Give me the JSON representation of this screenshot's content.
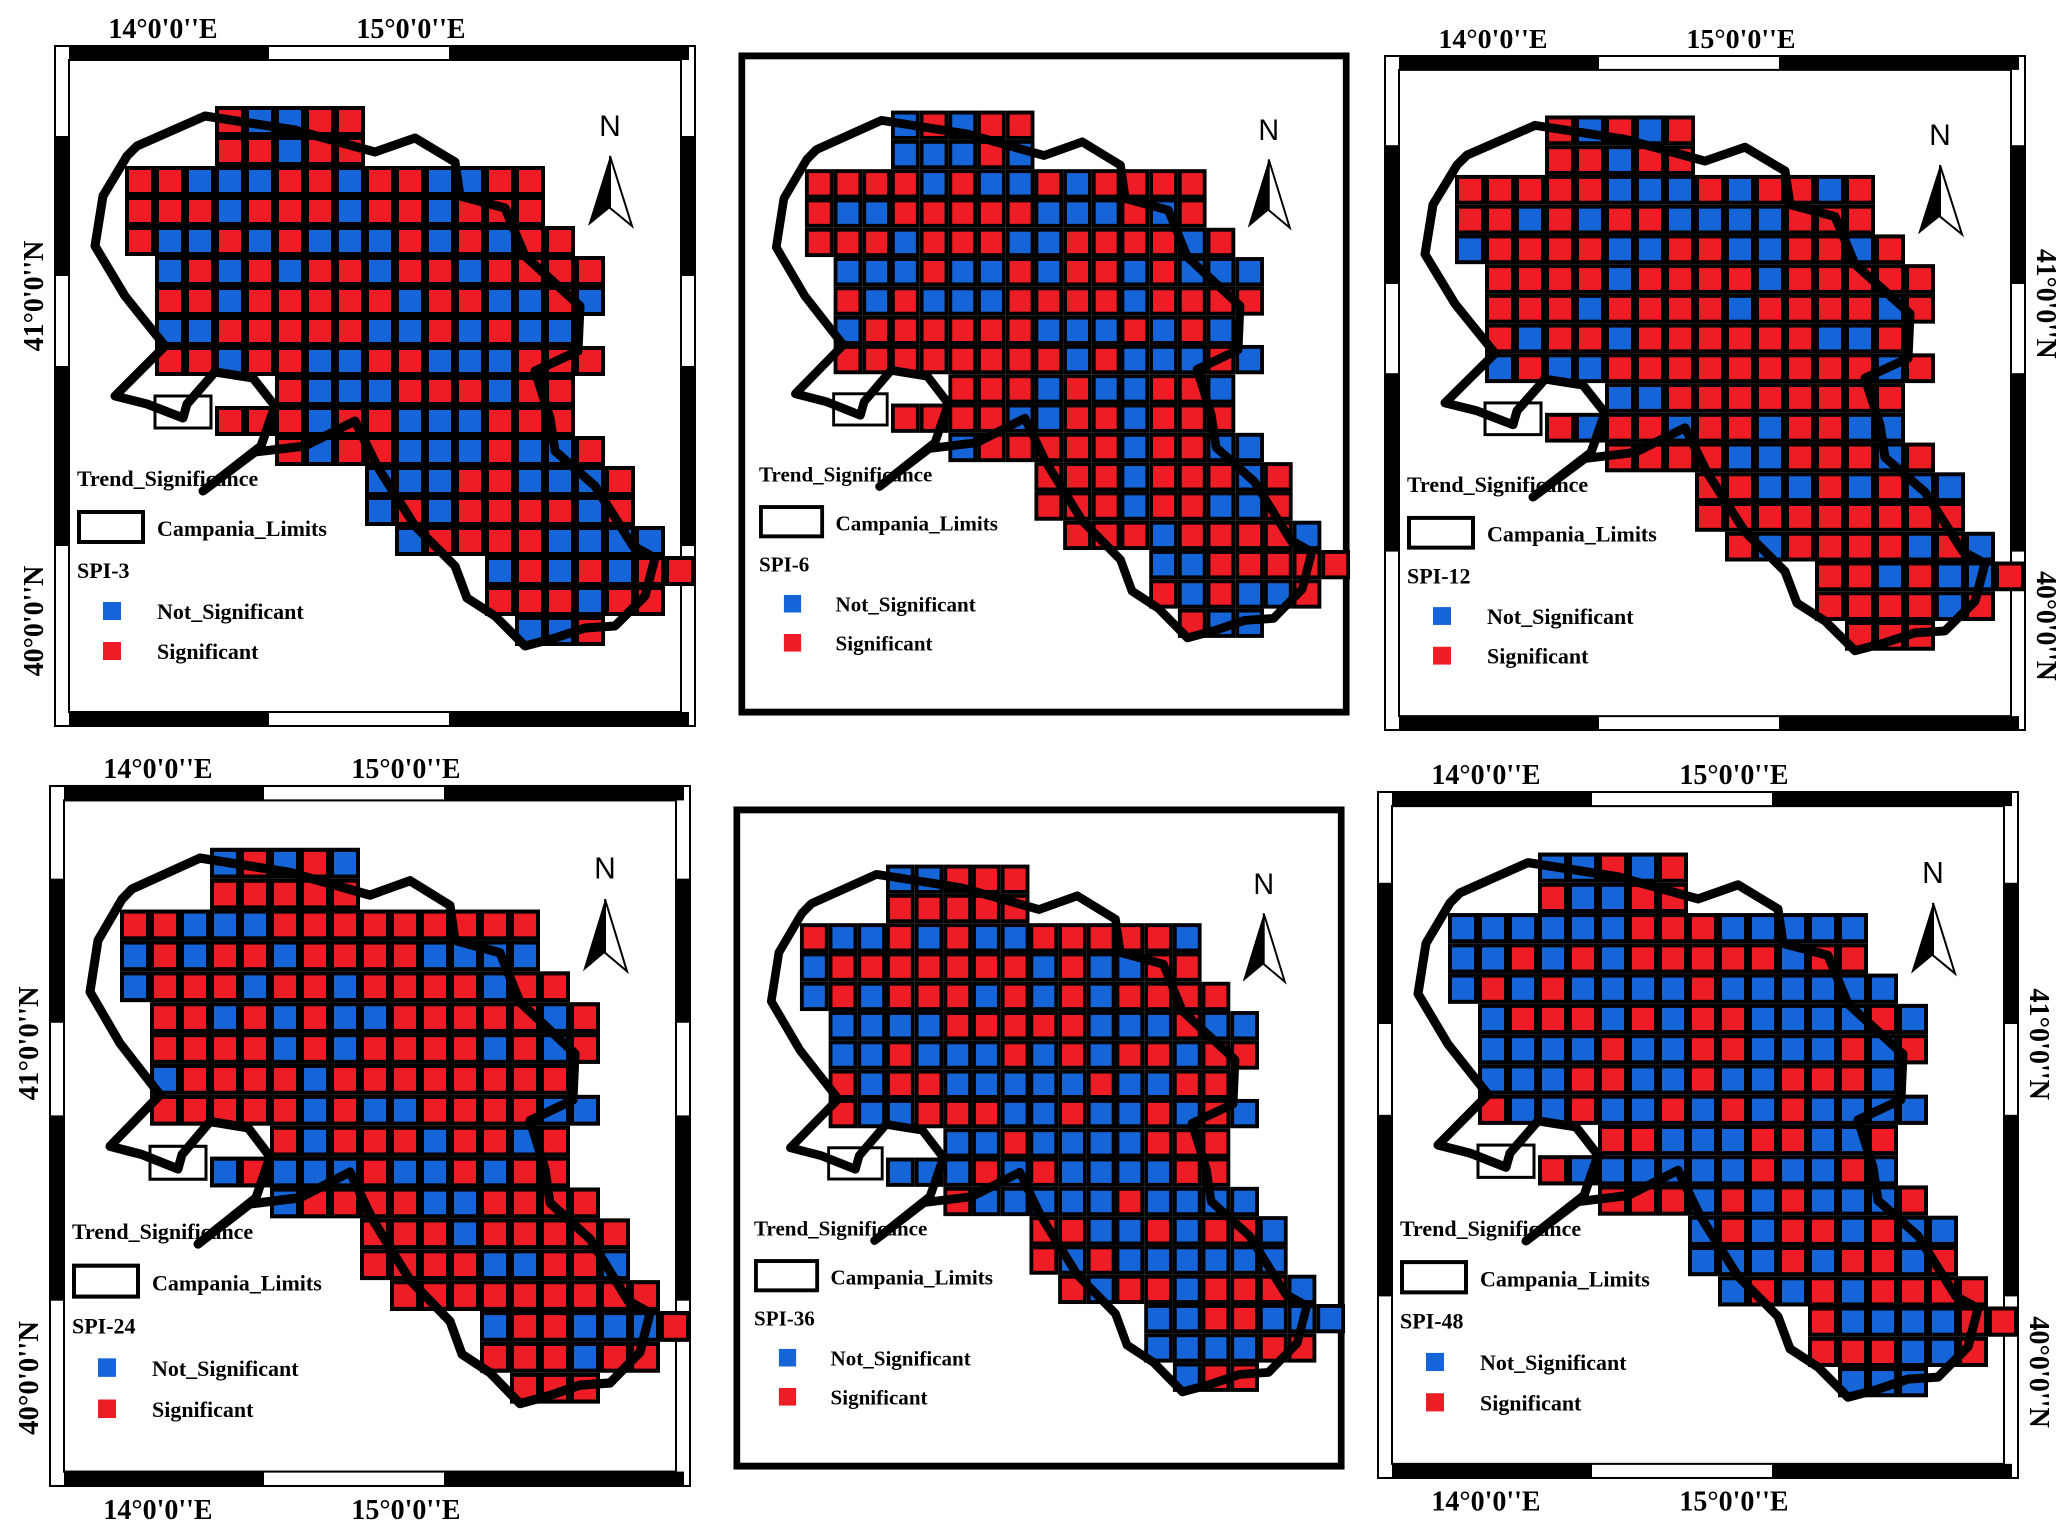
{
  "colors": {
    "not_significant": "#1565d8",
    "significant": "#ee1c24",
    "outline": "#000000",
    "background": "#ffffff"
  },
  "labels": {
    "lon_14": "14°0'0''E",
    "lon_15": "15°0'0''E",
    "lat_41": "41°0'0''N",
    "lat_40": "40°0'0''N",
    "north": "N",
    "legend_title": "Trend_Significance",
    "limits": "Campania_Limits",
    "not_significant": "Not_Significant",
    "significant": "Significant"
  },
  "grid_rows": [
    [
      4,
      8
    ],
    [
      4,
      8
    ],
    [
      1,
      14
    ],
    [
      1,
      14
    ],
    [
      1,
      15
    ],
    [
      2,
      16
    ],
    [
      2,
      16
    ],
    [
      2,
      15
    ],
    [
      2,
      16
    ],
    [
      6,
      15
    ],
    [
      4,
      15
    ],
    [
      6,
      16
    ],
    [
      9,
      17
    ],
    [
      9,
      17
    ],
    [
      10,
      18
    ],
    [
      13,
      19
    ],
    [
      13,
      18
    ],
    [
      14,
      16
    ]
  ],
  "panels": [
    {
      "id": "SPI-3",
      "label": "SPI-3",
      "frame": "graticule",
      "coords_top": true,
      "coords_bottom": false,
      "coords_left": true,
      "coords_right": false,
      "significant_share": 0.58
    },
    {
      "id": "SPI-6",
      "label": "SPI-6",
      "frame": "thick-border",
      "coords_top": false,
      "coords_bottom": false,
      "coords_left": false,
      "coords_right": false,
      "significant_share": 0.66
    },
    {
      "id": "SPI-12",
      "label": "SPI-12",
      "frame": "graticule",
      "coords_top": true,
      "coords_bottom": false,
      "coords_left": false,
      "coords_right": true,
      "significant_share": 0.7
    },
    {
      "id": "SPI-24",
      "label": "SPI-24",
      "frame": "graticule",
      "coords_top": true,
      "coords_bottom": true,
      "coords_left": true,
      "coords_right": false,
      "significant_share": 0.72
    },
    {
      "id": "SPI-36",
      "label": "SPI-36",
      "frame": "thick-border",
      "coords_top": false,
      "coords_bottom": false,
      "coords_left": false,
      "coords_right": false,
      "significant_share": 0.5
    },
    {
      "id": "SPI-48",
      "label": "SPI-48",
      "frame": "graticule",
      "coords_top": true,
      "coords_bottom": true,
      "coords_left": false,
      "coords_right": true,
      "significant_share": 0.4
    }
  ]
}
